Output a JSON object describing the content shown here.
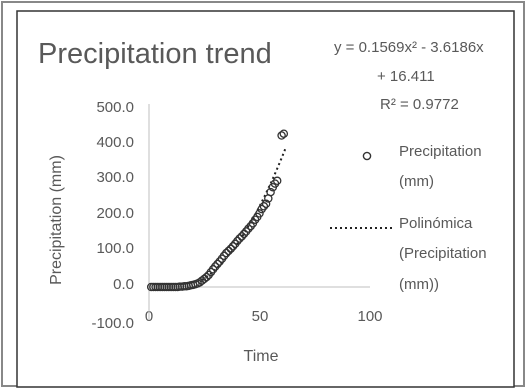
{
  "chart_data": {
    "type": "scatter",
    "title": "Precipitation trend",
    "xlabel": "Time",
    "ylabel": "Precipitation (mm)",
    "xlim": [
      0,
      100
    ],
    "ylim": [
      -100,
      500
    ],
    "x_ticks": [
      "0",
      "50",
      "100"
    ],
    "y_ticks": [
      "500.0",
      "400.0",
      "300.0",
      "200.0",
      "100.0",
      "0.0",
      "-100.0"
    ],
    "grid": false,
    "legend_position": "right",
    "trendline": {
      "type": "polynomial",
      "order": 2,
      "equation_line1": "y = 0.1569x² - 3.6186x",
      "equation_line2": "+ 16.411",
      "r_squared": "R² = 0.9772",
      "coefficients": [
        0.1569,
        -3.6186,
        16.411
      ]
    },
    "series": [
      {
        "name": "Precipitation (mm)",
        "marker": "open-circle",
        "points": [
          [
            1,
            0
          ],
          [
            2,
            0
          ],
          [
            3,
            0
          ],
          [
            4,
            0
          ],
          [
            5,
            0
          ],
          [
            6,
            0
          ],
          [
            7,
            0
          ],
          [
            8,
            0
          ],
          [
            9,
            0
          ],
          [
            10,
            0
          ],
          [
            11,
            0
          ],
          [
            12,
            0
          ],
          [
            13,
            0
          ],
          [
            14,
            1
          ],
          [
            15,
            1
          ],
          [
            16,
            2
          ],
          [
            17,
            2
          ],
          [
            18,
            3
          ],
          [
            19,
            5
          ],
          [
            20,
            6
          ],
          [
            21,
            8
          ],
          [
            22,
            10
          ],
          [
            23,
            13
          ],
          [
            24,
            18
          ],
          [
            25,
            23
          ],
          [
            26,
            28
          ],
          [
            27,
            34
          ],
          [
            28,
            42
          ],
          [
            29,
            50
          ],
          [
            30,
            58
          ],
          [
            31,
            65
          ],
          [
            32,
            72
          ],
          [
            33,
            80
          ],
          [
            34,
            88
          ],
          [
            35,
            96
          ],
          [
            36,
            102
          ],
          [
            37,
            108
          ],
          [
            38,
            115
          ],
          [
            39,
            122
          ],
          [
            40,
            130
          ],
          [
            41,
            137
          ],
          [
            42,
            143
          ],
          [
            43,
            150
          ],
          [
            44,
            157
          ],
          [
            45,
            165
          ],
          [
            46,
            172
          ],
          [
            47,
            180
          ],
          [
            48,
            190
          ],
          [
            49,
            198
          ],
          [
            50,
            208
          ],
          [
            51,
            220
          ],
          [
            52,
            228
          ],
          [
            53,
            235
          ],
          [
            54,
            250
          ],
          [
            55,
            268
          ],
          [
            56,
            282
          ],
          [
            57,
            292
          ],
          [
            58,
            300
          ],
          [
            60,
            428
          ],
          [
            61,
            433
          ]
        ]
      }
    ],
    "legend": [
      {
        "label_line1": "Precipitation",
        "label_line2": "(mm)"
      },
      {
        "label_line1": "Polinómica",
        "label_line2": "(Precipitation",
        "label_line3": "mm))"
      }
    ]
  }
}
